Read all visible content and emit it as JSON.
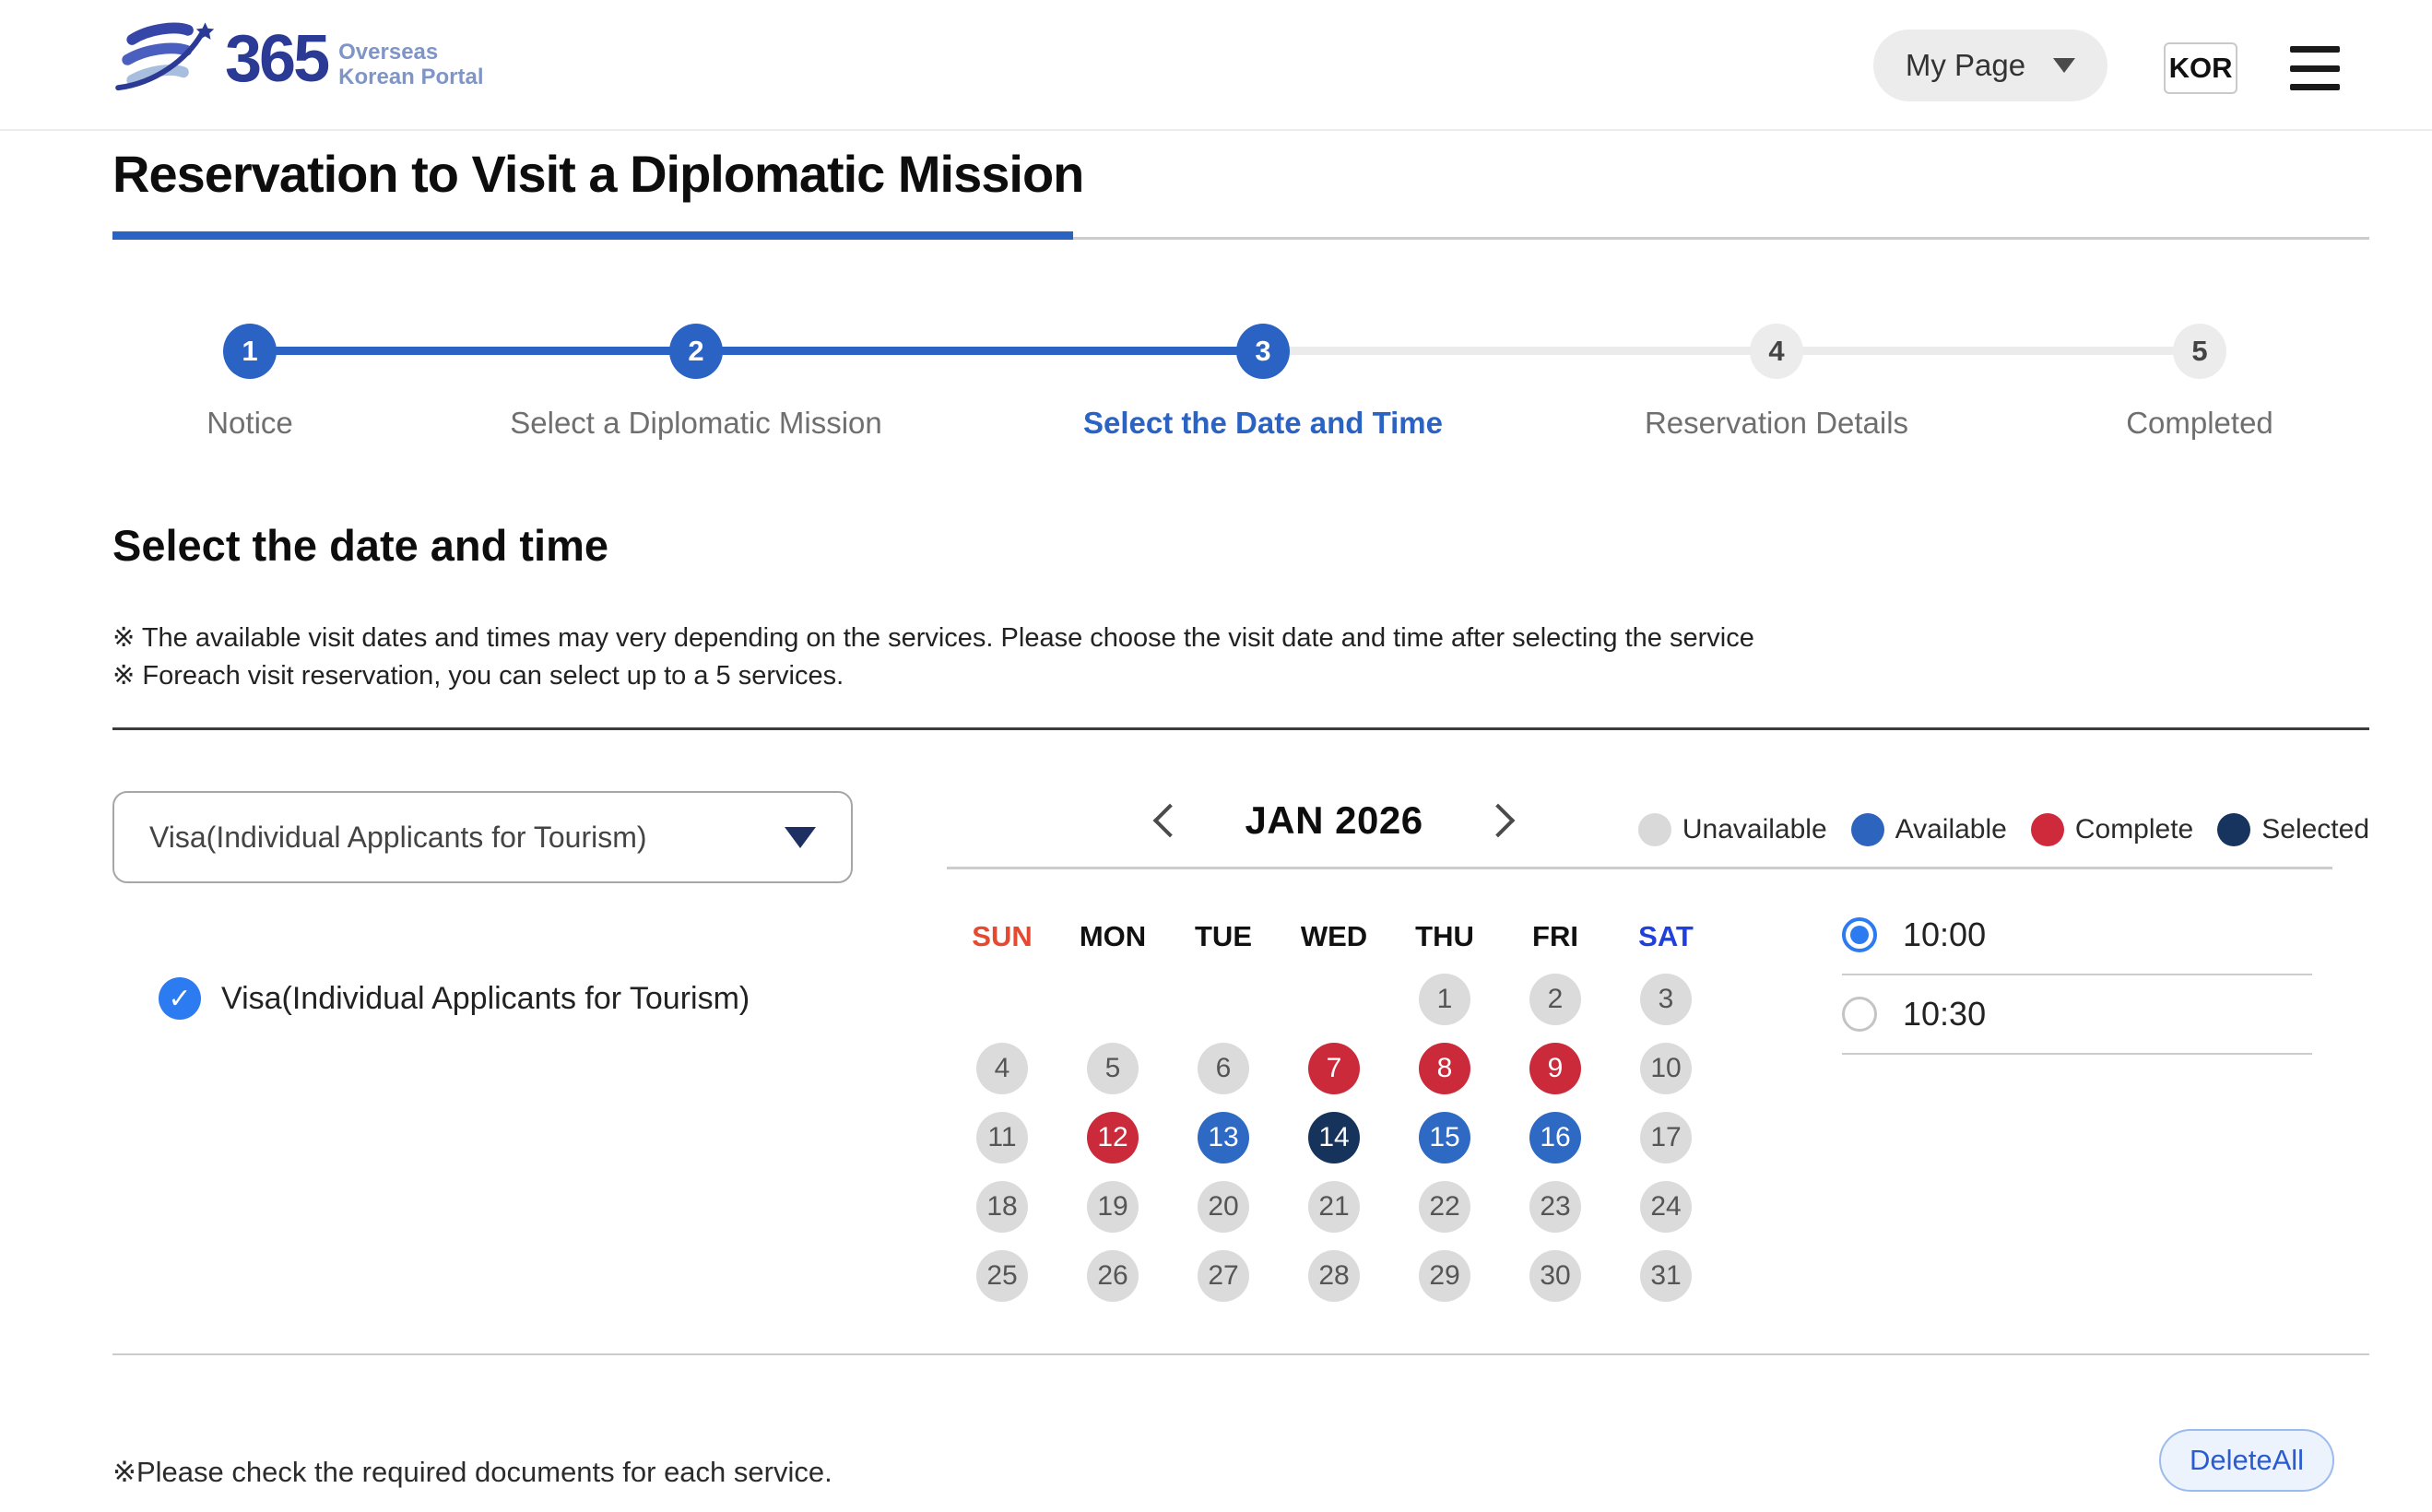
{
  "header": {
    "logo": {
      "number": "365",
      "line1": "Overseas",
      "line2": "Korean Portal"
    },
    "my_page_label": "My Page",
    "language_label": "KOR"
  },
  "page": {
    "title": "Reservation to Visit a Diplomatic Mission",
    "section_title": "Select the date and time",
    "notes": [
      "※ The available visit dates and times may very depending on the services. Please choose the visit date and time after selecting the service",
      "※ Foreach visit reservation, you can select up to a 5 services."
    ],
    "footer_note": "※Please check the required documents for each service.",
    "delete_all_label": "DeleteAll"
  },
  "stepper": {
    "current_step": 3,
    "steps": [
      {
        "num": "1",
        "label": "Notice",
        "state": "done"
      },
      {
        "num": "2",
        "label": "Select a Diplomatic Mission",
        "state": "done"
      },
      {
        "num": "3",
        "label": "Select the Date and Time",
        "state": "current"
      },
      {
        "num": "4",
        "label": "Reservation Details",
        "state": "upcoming"
      },
      {
        "num": "5",
        "label": "Completed",
        "state": "upcoming"
      }
    ]
  },
  "service": {
    "dropdown_value": "Visa(Individual Applicants for Tourism)",
    "selected_service": {
      "label": "Visa(Individual Applicants for Tourism)",
      "checked": true
    },
    "check_glyph": "✓"
  },
  "calendar": {
    "month_label": "JAN 2026",
    "weekdays": [
      {
        "label": "SUN",
        "color": "#e5492f"
      },
      {
        "label": "MON",
        "color": "#111111"
      },
      {
        "label": "TUE",
        "color": "#111111"
      },
      {
        "label": "WED",
        "color": "#111111"
      },
      {
        "label": "THU",
        "color": "#111111"
      },
      {
        "label": "FRI",
        "color": "#111111"
      },
      {
        "label": "SAT",
        "color": "#2040dd"
      }
    ],
    "legend": [
      {
        "label": "Unavailable",
        "color": "#d9d9d9"
      },
      {
        "label": "Available",
        "color": "#2d64bd"
      },
      {
        "label": "Complete",
        "color": "#cf2a3c"
      },
      {
        "label": "Selected",
        "color": "#17345e"
      }
    ],
    "first_day_column": 4,
    "selected_date": 14,
    "days": [
      {
        "d": 1,
        "state": "unavailable"
      },
      {
        "d": 2,
        "state": "unavailable"
      },
      {
        "d": 3,
        "state": "unavailable"
      },
      {
        "d": 4,
        "state": "unavailable"
      },
      {
        "d": 5,
        "state": "unavailable"
      },
      {
        "d": 6,
        "state": "unavailable"
      },
      {
        "d": 7,
        "state": "complete"
      },
      {
        "d": 8,
        "state": "complete"
      },
      {
        "d": 9,
        "state": "complete"
      },
      {
        "d": 10,
        "state": "unavailable"
      },
      {
        "d": 11,
        "state": "unavailable"
      },
      {
        "d": 12,
        "state": "complete"
      },
      {
        "d": 13,
        "state": "available"
      },
      {
        "d": 14,
        "state": "selected"
      },
      {
        "d": 15,
        "state": "available"
      },
      {
        "d": 16,
        "state": "available"
      },
      {
        "d": 17,
        "state": "unavailable"
      },
      {
        "d": 18,
        "state": "unavailable"
      },
      {
        "d": 19,
        "state": "unavailable"
      },
      {
        "d": 20,
        "state": "unavailable"
      },
      {
        "d": 21,
        "state": "unavailable"
      },
      {
        "d": 22,
        "state": "unavailable"
      },
      {
        "d": 23,
        "state": "unavailable"
      },
      {
        "d": 24,
        "state": "unavailable"
      },
      {
        "d": 25,
        "state": "unavailable"
      },
      {
        "d": 26,
        "state": "unavailable"
      },
      {
        "d": 27,
        "state": "unavailable"
      },
      {
        "d": 28,
        "state": "unavailable"
      },
      {
        "d": 29,
        "state": "unavailable"
      },
      {
        "d": 30,
        "state": "unavailable"
      },
      {
        "d": 31,
        "state": "unavailable"
      }
    ]
  },
  "times": [
    {
      "label": "10:00",
      "selected": true
    },
    {
      "label": "10:30",
      "selected": false
    }
  ],
  "colors": {
    "primary_blue": "#2a63c4",
    "bright_blue": "#2d7bf0",
    "available": "#2e6ac3",
    "complete": "#cb2a3b",
    "selected": "#16335b",
    "unavailable": "#dbdbdb"
  }
}
